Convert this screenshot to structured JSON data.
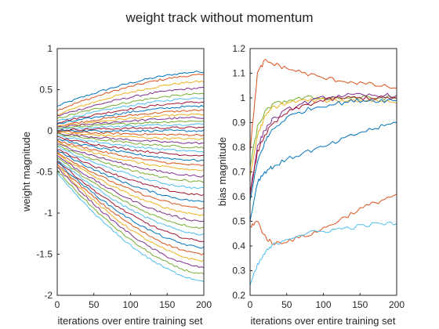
{
  "figure": {
    "title": "weight track without momentum"
  },
  "colors": [
    "#0072BD",
    "#D95319",
    "#EDB120",
    "#7E2F8E",
    "#77AC30",
    "#4DBEEE",
    "#A2142F"
  ],
  "chart_data": [
    {
      "id": "weights",
      "type": "line",
      "xlabel": "iterations over entire training set",
      "ylabel": "weight magnitude",
      "xlim": [
        0,
        200
      ],
      "ylim": [
        -2,
        1
      ],
      "xticks": [
        "0",
        "50",
        "100",
        "150",
        "200"
      ],
      "yticks": [
        "-2",
        "-1.5",
        "-1",
        "-0.5",
        "0",
        "0.5",
        "1"
      ],
      "note": "Dense bundle of weight trajectories fanning out from near 0; end values at x=200 listed, start values at x=0",
      "x": [
        0,
        200
      ],
      "series": [
        {
          "start": 0.3,
          "end": 0.72
        },
        {
          "start": 0.25,
          "end": 0.68
        },
        {
          "start": 0.2,
          "end": 0.6
        },
        {
          "start": 0.18,
          "end": 0.52
        },
        {
          "start": 0.15,
          "end": 0.45
        },
        {
          "start": 0.12,
          "end": 0.4
        },
        {
          "start": 0.1,
          "end": 0.35
        },
        {
          "start": 0.08,
          "end": 0.3
        },
        {
          "start": 0.06,
          "end": 0.25
        },
        {
          "start": 0.05,
          "end": 0.2
        },
        {
          "start": 0.04,
          "end": 0.16
        },
        {
          "start": 0.03,
          "end": 0.12
        },
        {
          "start": 0.02,
          "end": 0.08
        },
        {
          "start": 0.01,
          "end": 0.04
        },
        {
          "start": 0.0,
          "end": 0.0
        },
        {
          "start": -0.01,
          "end": -0.05
        },
        {
          "start": -0.02,
          "end": -0.1
        },
        {
          "start": -0.03,
          "end": -0.15
        },
        {
          "start": -0.04,
          "end": -0.2
        },
        {
          "start": -0.06,
          "end": -0.25
        },
        {
          "start": -0.08,
          "end": -0.3
        },
        {
          "start": -0.1,
          "end": -0.36
        },
        {
          "start": -0.12,
          "end": -0.42
        },
        {
          "start": -0.14,
          "end": -0.48
        },
        {
          "start": -0.16,
          "end": -0.55
        },
        {
          "start": -0.18,
          "end": -0.62
        },
        {
          "start": -0.2,
          "end": -0.7
        },
        {
          "start": -0.22,
          "end": -0.78
        },
        {
          "start": -0.24,
          "end": -0.86
        },
        {
          "start": -0.26,
          "end": -0.94
        },
        {
          "start": -0.28,
          "end": -1.02
        },
        {
          "start": -0.3,
          "end": -1.1
        },
        {
          "start": -0.32,
          "end": -1.18
        },
        {
          "start": -0.34,
          "end": -1.26
        },
        {
          "start": -0.36,
          "end": -1.34
        },
        {
          "start": -0.38,
          "end": -1.42
        },
        {
          "start": -0.4,
          "end": -1.5
        },
        {
          "start": -0.42,
          "end": -1.58
        },
        {
          "start": -0.44,
          "end": -1.66
        },
        {
          "start": -0.48,
          "end": -1.74
        },
        {
          "start": -0.52,
          "end": -1.82
        }
      ]
    },
    {
      "id": "biases",
      "type": "line",
      "xlabel": "iterations over entire training set",
      "ylabel": "bias magnitude",
      "xlim": [
        0,
        200
      ],
      "ylim": [
        0.2,
        1.2
      ],
      "xticks": [
        "0",
        "50",
        "100",
        "150",
        "200"
      ],
      "yticks": [
        "0.2",
        "0.3",
        "0.4",
        "0.5",
        "0.6",
        "0.7",
        "0.8",
        "0.9",
        "1",
        "1.1",
        "1.2"
      ],
      "x": [
        0,
        10,
        20,
        30,
        50,
        75,
        100,
        125,
        150,
        175,
        200
      ],
      "series": [
        {
          "color_index": 1,
          "values": [
            0.78,
            1.1,
            1.15,
            1.14,
            1.12,
            1.1,
            1.08,
            1.07,
            1.06,
            1.05,
            1.04
          ]
        },
        {
          "color_index": 4,
          "values": [
            0.72,
            0.88,
            0.94,
            0.97,
            0.99,
            1.0,
            1.0,
            1.0,
            1.0,
            1.0,
            1.0
          ]
        },
        {
          "color_index": 2,
          "values": [
            0.68,
            0.85,
            0.92,
            0.96,
            0.98,
            0.99,
            0.99,
            0.99,
            0.99,
            0.99,
            0.98
          ]
        },
        {
          "color_index": 3,
          "values": [
            0.62,
            0.8,
            0.87,
            0.91,
            0.95,
            0.98,
            1.0,
            1.01,
            1.01,
            1.01,
            1.01
          ]
        },
        {
          "color_index": 6,
          "values": [
            0.6,
            0.78,
            0.85,
            0.89,
            0.94,
            0.97,
            0.99,
            1.0,
            1.0,
            1.0,
            1.0
          ]
        },
        {
          "color_index": 0,
          "values": [
            0.58,
            0.74,
            0.82,
            0.87,
            0.92,
            0.95,
            0.97,
            0.98,
            0.99,
            0.99,
            0.99
          ]
        },
        {
          "color_index": 0,
          "values": [
            0.5,
            0.66,
            0.7,
            0.72,
            0.75,
            0.78,
            0.8,
            0.83,
            0.86,
            0.88,
            0.9
          ]
        },
        {
          "color_index": 1,
          "values": [
            0.48,
            0.5,
            0.44,
            0.41,
            0.42,
            0.44,
            0.47,
            0.51,
            0.55,
            0.58,
            0.61
          ]
        },
        {
          "color_index": 5,
          "values": [
            0.24,
            0.32,
            0.37,
            0.4,
            0.43,
            0.45,
            0.46,
            0.47,
            0.48,
            0.49,
            0.49
          ]
        }
      ]
    }
  ]
}
